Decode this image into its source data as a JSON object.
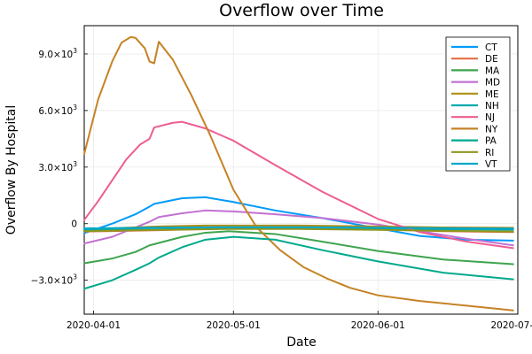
{
  "chart_data": {
    "type": "line",
    "title": "Overflow over Time",
    "xlabel": "Date",
    "ylabel": "Overflow By Hospital",
    "xlim": [
      "2020-03-30",
      "2020-07-01"
    ],
    "ylim": [
      -4800,
      10500
    ],
    "grid": true,
    "legend_position": "top-right",
    "x_ticks": [
      {
        "date": "2020-04-01",
        "label": "2020-04-01"
      },
      {
        "date": "2020-05-01",
        "label": "2020-05-01"
      },
      {
        "date": "2020-06-01",
        "label": "2020-06-01"
      },
      {
        "date": "2020-07-01",
        "label": "2020-07-01"
      }
    ],
    "y_ticks": [
      {
        "value": 9000,
        "mantissa": "9.0×10",
        "exp": "3"
      },
      {
        "value": 6000,
        "mantissa": "6.0×10",
        "exp": "3"
      },
      {
        "value": 3000,
        "mantissa": "3.0×10",
        "exp": "3"
      },
      {
        "value": 0,
        "mantissa": "0",
        "exp": ""
      },
      {
        "value": -3000,
        "mantissa": "−3.0×10",
        "exp": "3"
      }
    ],
    "series": [
      {
        "name": "CT",
        "color": "#009AFA",
        "points": [
          [
            "2020-03-30",
            -500
          ],
          [
            "2020-04-05",
            0
          ],
          [
            "2020-04-10",
            500
          ],
          [
            "2020-04-13",
            900
          ],
          [
            "2020-04-14",
            1050
          ],
          [
            "2020-04-20",
            1350
          ],
          [
            "2020-04-25",
            1400
          ],
          [
            "2020-05-01",
            1150
          ],
          [
            "2020-05-10",
            700
          ],
          [
            "2020-05-20",
            300
          ],
          [
            "2020-06-01",
            -250
          ],
          [
            "2020-06-10",
            -650
          ],
          [
            "2020-06-20",
            -850
          ],
          [
            "2020-06-30",
            -900
          ]
        ]
      },
      {
        "name": "DE",
        "color": "#E36F47",
        "points": [
          [
            "2020-03-30",
            -420
          ],
          [
            "2020-04-15",
            -350
          ],
          [
            "2020-04-30",
            -260
          ],
          [
            "2020-05-15",
            -250
          ],
          [
            "2020-06-01",
            -300
          ],
          [
            "2020-06-15",
            -400
          ],
          [
            "2020-06-30",
            -450
          ]
        ]
      },
      {
        "name": "MA",
        "color": "#3EA44E",
        "points": [
          [
            "2020-03-30",
            -2100
          ],
          [
            "2020-04-05",
            -1850
          ],
          [
            "2020-04-10",
            -1500
          ],
          [
            "2020-04-13",
            -1150
          ],
          [
            "2020-04-20",
            -700
          ],
          [
            "2020-04-25",
            -480
          ],
          [
            "2020-04-30",
            -400
          ],
          [
            "2020-05-10",
            -550
          ],
          [
            "2020-05-20",
            -950
          ],
          [
            "2020-06-01",
            -1450
          ],
          [
            "2020-06-15",
            -1900
          ],
          [
            "2020-06-30",
            -2150
          ]
        ]
      },
      {
        "name": "MD",
        "color": "#C271D2",
        "points": [
          [
            "2020-03-30",
            -1050
          ],
          [
            "2020-04-05",
            -700
          ],
          [
            "2020-04-10",
            -200
          ],
          [
            "2020-04-13",
            100
          ],
          [
            "2020-04-15",
            350
          ],
          [
            "2020-04-20",
            550
          ],
          [
            "2020-04-25",
            700
          ],
          [
            "2020-05-01",
            650
          ],
          [
            "2020-05-10",
            500
          ],
          [
            "2020-05-20",
            300
          ],
          [
            "2020-06-01",
            -50
          ],
          [
            "2020-06-10",
            -400
          ],
          [
            "2020-06-20",
            -800
          ],
          [
            "2020-06-30",
            -1150
          ]
        ]
      },
      {
        "name": "ME",
        "color": "#AD8F18",
        "points": [
          [
            "2020-03-30",
            -300
          ],
          [
            "2020-04-15",
            -150
          ],
          [
            "2020-04-25",
            -100
          ],
          [
            "2020-05-15",
            -100
          ],
          [
            "2020-06-01",
            -150
          ],
          [
            "2020-06-15",
            -200
          ],
          [
            "2020-06-30",
            -220
          ]
        ]
      },
      {
        "name": "NH",
        "color": "#00A9AD",
        "points": [
          [
            "2020-03-30",
            -340
          ],
          [
            "2020-04-15",
            -300
          ],
          [
            "2020-04-30",
            -250
          ],
          [
            "2020-05-15",
            -250
          ],
          [
            "2020-06-01",
            -280
          ],
          [
            "2020-06-15",
            -300
          ],
          [
            "2020-06-30",
            -320
          ]
        ]
      },
      {
        "name": "NJ",
        "color": "#ED5D92",
        "points": [
          [
            "2020-03-30",
            200
          ],
          [
            "2020-04-02",
            1200
          ],
          [
            "2020-04-05",
            2300
          ],
          [
            "2020-04-08",
            3400
          ],
          [
            "2020-04-11",
            4200
          ],
          [
            "2020-04-13",
            4500
          ],
          [
            "2020-04-14",
            5100
          ],
          [
            "2020-04-18",
            5350
          ],
          [
            "2020-04-20",
            5400
          ],
          [
            "2020-04-25",
            5050
          ],
          [
            "2020-05-01",
            4400
          ],
          [
            "2020-05-10",
            3100
          ],
          [
            "2020-05-20",
            1700
          ],
          [
            "2020-06-01",
            250
          ],
          [
            "2020-06-10",
            -450
          ],
          [
            "2020-06-20",
            -950
          ],
          [
            "2020-06-30",
            -1300
          ]
        ]
      },
      {
        "name": "NY",
        "color": "#C68225",
        "points": [
          [
            "2020-03-30",
            3700
          ],
          [
            "2020-04-02",
            6600
          ],
          [
            "2020-04-05",
            8600
          ],
          [
            "2020-04-07",
            9600
          ],
          [
            "2020-04-09",
            9900
          ],
          [
            "2020-04-10",
            9850
          ],
          [
            "2020-04-12",
            9300
          ],
          [
            "2020-04-13",
            8600
          ],
          [
            "2020-04-14",
            8500
          ],
          [
            "2020-04-15",
            9650
          ],
          [
            "2020-04-18",
            8700
          ],
          [
            "2020-04-22",
            6800
          ],
          [
            "2020-04-26",
            4700
          ],
          [
            "2020-05-01",
            1800
          ],
          [
            "2020-05-06",
            -200
          ],
          [
            "2020-05-11",
            -1400
          ],
          [
            "2020-05-16",
            -2300
          ],
          [
            "2020-05-21",
            -2900
          ],
          [
            "2020-05-26",
            -3400
          ],
          [
            "2020-06-01",
            -3800
          ],
          [
            "2020-06-10",
            -4100
          ],
          [
            "2020-06-20",
            -4350
          ],
          [
            "2020-06-30",
            -4600
          ]
        ]
      },
      {
        "name": "PA",
        "color": "#00A98D",
        "points": [
          [
            "2020-03-30",
            -3450
          ],
          [
            "2020-04-05",
            -3000
          ],
          [
            "2020-04-10",
            -2450
          ],
          [
            "2020-04-13",
            -2100
          ],
          [
            "2020-04-15",
            -1800
          ],
          [
            "2020-04-20",
            -1250
          ],
          [
            "2020-04-25",
            -850
          ],
          [
            "2020-05-01",
            -700
          ],
          [
            "2020-05-10",
            -850
          ],
          [
            "2020-05-20",
            -1400
          ],
          [
            "2020-06-01",
            -2000
          ],
          [
            "2020-06-15",
            -2600
          ],
          [
            "2020-06-30",
            -2950
          ]
        ]
      },
      {
        "name": "RI",
        "color": "#8E971D",
        "points": [
          [
            "2020-03-30",
            -400
          ],
          [
            "2020-04-15",
            -330
          ],
          [
            "2020-04-30",
            -280
          ],
          [
            "2020-05-15",
            -280
          ],
          [
            "2020-06-01",
            -330
          ],
          [
            "2020-06-15",
            -380
          ],
          [
            "2020-06-30",
            -420
          ]
        ]
      },
      {
        "name": "VT",
        "color": "#00A8CB",
        "points": [
          [
            "2020-03-30",
            -250
          ],
          [
            "2020-04-15",
            -210
          ],
          [
            "2020-04-30",
            -190
          ],
          [
            "2020-05-15",
            -190
          ],
          [
            "2020-06-01",
            -210
          ],
          [
            "2020-06-15",
            -240
          ],
          [
            "2020-06-30",
            -260
          ]
        ]
      }
    ]
  }
}
